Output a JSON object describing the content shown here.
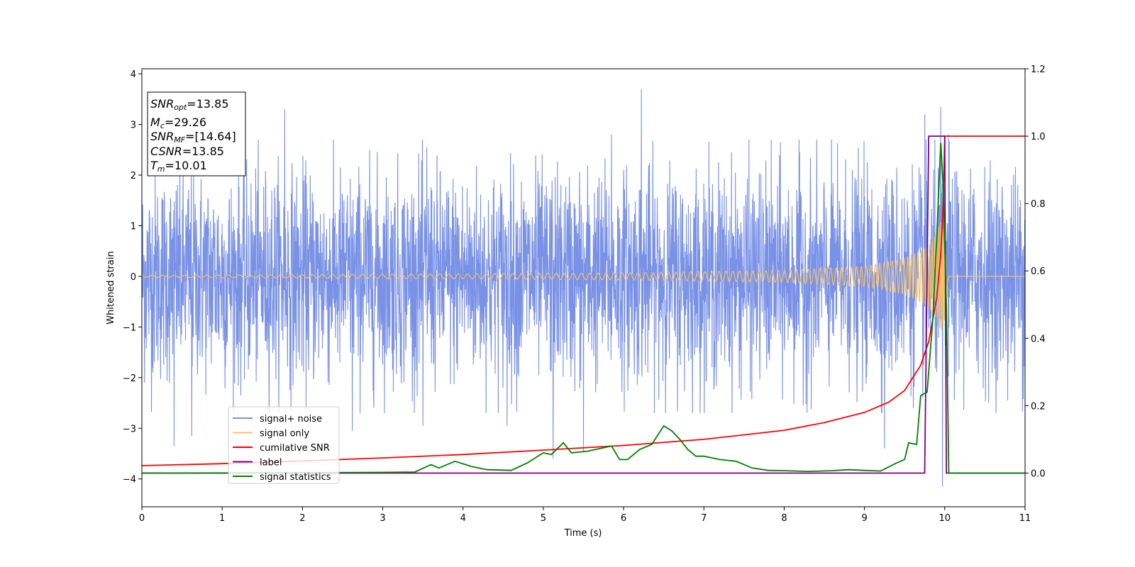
{
  "chart_data": {
    "type": "line",
    "title": "",
    "xlabel": "Time (s)",
    "ylabel": "Whitened strain",
    "xlim": [
      0,
      11
    ],
    "ylim": [
      -4.55,
      4.1
    ],
    "ylim_right": [
      -0.1,
      1.2
    ],
    "grid": false,
    "legend_position": "lower-left",
    "x_ticks": [
      "0",
      "1",
      "2",
      "3",
      "4",
      "5",
      "6",
      "7",
      "8",
      "9",
      "10",
      "11"
    ],
    "y_ticks_left": [
      "−4",
      "−3",
      "−2",
      "−1",
      "0",
      "1",
      "2",
      "3",
      "4"
    ],
    "y_ticks_right": [
      "0.0",
      "0.2",
      "0.4",
      "0.6",
      "0.8",
      "1.0",
      "1.2"
    ],
    "info_box": [
      {
        "sym": "SNR",
        "sub": "opt",
        "value": "=13.85"
      },
      {
        "sym": "M",
        "sub": "c",
        "value": "=29.26"
      },
      {
        "sym": "SNR",
        "sub": "MF",
        "value": "=[14.64]"
      },
      {
        "sym": "CSNR",
        "sub": "",
        "value": "=13.85"
      },
      {
        "sym": "T",
        "sub": "m",
        "value": "=10.01"
      }
    ],
    "series": [
      {
        "name": "signal+ noise",
        "color": "#7991e6",
        "axis": "left",
        "style": "noise band",
        "typical_amplitude": 1.2,
        "peak_values": [
          {
            "x": 0.4,
            "y": -3.35
          },
          {
            "x": 0.62,
            "y": -3.15
          },
          {
            "x": 1.78,
            "y": 3.3
          },
          {
            "x": 2.62,
            "y": -3.05
          },
          {
            "x": 3.5,
            "y": -2.95
          },
          {
            "x": 3.55,
            "y": 2.55
          },
          {
            "x": 4.55,
            "y": -2.95
          },
          {
            "x": 5.12,
            "y": -3.6
          },
          {
            "x": 5.5,
            "y": -3.45
          },
          {
            "x": 5.85,
            "y": 2.8
          },
          {
            "x": 6.22,
            "y": 3.7
          },
          {
            "x": 9.25,
            "y": -3.4
          },
          {
            "x": 9.75,
            "y": 3.2
          },
          {
            "x": 9.95,
            "y": 3.35
          },
          {
            "x": 9.97,
            "y": -4.15
          },
          {
            "x": 10.05,
            "y": 2.8
          }
        ]
      },
      {
        "name": "signal only",
        "color": "#f5c267",
        "axis": "left",
        "style": "chirp",
        "points": [
          [
            0,
            0.02
          ],
          [
            4,
            0.05
          ],
          [
            6,
            0.07
          ],
          [
            8,
            0.12
          ],
          [
            9,
            0.2
          ],
          [
            9.5,
            0.35
          ],
          [
            9.8,
            0.6
          ],
          [
            9.9,
            0.85
          ],
          [
            9.95,
            1.1
          ],
          [
            10.0,
            0.9
          ],
          [
            10.02,
            0.3
          ],
          [
            10.05,
            0.0
          ],
          [
            11,
            0.0
          ]
        ]
      },
      {
        "name": "cumilative SNR",
        "color": "#ff0000",
        "axis": "right",
        "points": [
          [
            0,
            0.022
          ],
          [
            1,
            0.028
          ],
          [
            2,
            0.036
          ],
          [
            3,
            0.045
          ],
          [
            4,
            0.055
          ],
          [
            5,
            0.068
          ],
          [
            6,
            0.082
          ],
          [
            7,
            0.1
          ],
          [
            8,
            0.127
          ],
          [
            8.5,
            0.15
          ],
          [
            9,
            0.18
          ],
          [
            9.3,
            0.21
          ],
          [
            9.5,
            0.245
          ],
          [
            9.7,
            0.32
          ],
          [
            9.8,
            0.39
          ],
          [
            9.9,
            0.52
          ],
          [
            9.95,
            0.65
          ],
          [
            9.98,
            0.8
          ],
          [
            10.0,
            1.0
          ],
          [
            11,
            1.0
          ]
        ]
      },
      {
        "name": "label",
        "color": "#800080",
        "axis": "right",
        "points": [
          [
            0,
            0.0
          ],
          [
            9.75,
            0.0
          ],
          [
            9.8,
            1.0
          ],
          [
            10.0,
            1.0
          ],
          [
            10.02,
            0.0
          ],
          [
            11,
            0.0
          ]
        ]
      },
      {
        "name": "signal statistics",
        "color": "#008000",
        "axis": "right",
        "points": [
          [
            0,
            0.0
          ],
          [
            2,
            0.001
          ],
          [
            3,
            0.002
          ],
          [
            3.4,
            0.003
          ],
          [
            3.6,
            0.025
          ],
          [
            3.7,
            0.015
          ],
          [
            3.9,
            0.035
          ],
          [
            4.1,
            0.02
          ],
          [
            4.3,
            0.01
          ],
          [
            4.6,
            0.008
          ],
          [
            4.8,
            0.03
          ],
          [
            5.0,
            0.06
          ],
          [
            5.1,
            0.055
          ],
          [
            5.25,
            0.09
          ],
          [
            5.35,
            0.06
          ],
          [
            5.55,
            0.065
          ],
          [
            5.75,
            0.075
          ],
          [
            5.85,
            0.08
          ],
          [
            5.95,
            0.04
          ],
          [
            6.05,
            0.04
          ],
          [
            6.2,
            0.07
          ],
          [
            6.35,
            0.085
          ],
          [
            6.5,
            0.14
          ],
          [
            6.6,
            0.125
          ],
          [
            6.7,
            0.1
          ],
          [
            6.8,
            0.07
          ],
          [
            6.9,
            0.05
          ],
          [
            7.0,
            0.05
          ],
          [
            7.2,
            0.04
          ],
          [
            7.4,
            0.035
          ],
          [
            7.6,
            0.015
          ],
          [
            7.8,
            0.008
          ],
          [
            8.0,
            0.007
          ],
          [
            8.3,
            0.005
          ],
          [
            8.6,
            0.007
          ],
          [
            8.8,
            0.01
          ],
          [
            9.0,
            0.008
          ],
          [
            9.2,
            0.006
          ],
          [
            9.4,
            0.03
          ],
          [
            9.5,
            0.04
          ],
          [
            9.55,
            0.09
          ],
          [
            9.65,
            0.085
          ],
          [
            9.7,
            0.23
          ],
          [
            9.78,
            0.24
          ],
          [
            9.85,
            0.45
          ],
          [
            9.9,
            0.7
          ],
          [
            9.95,
            0.98
          ],
          [
            9.98,
            0.85
          ],
          [
            10.02,
            0.5
          ],
          [
            10.05,
            0.0
          ],
          [
            11,
            0.0
          ]
        ]
      }
    ]
  }
}
